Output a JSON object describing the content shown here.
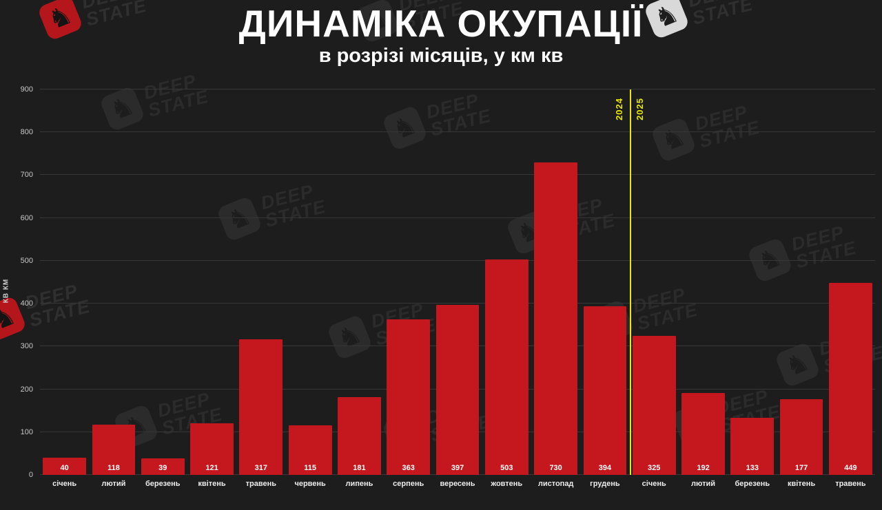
{
  "watermark": {
    "line1": "DEEP",
    "line2": "STATE",
    "logo": "knight-chess-piece"
  },
  "colors": {
    "background": "#1d1d1d",
    "bar": "#c5171e",
    "separator": "#e8e800",
    "grid": "#373737",
    "accent_red": "#b5161c"
  },
  "chart_data": {
    "type": "bar",
    "title": "ДИНАМІКА ОКУПАЦІЇ",
    "subtitle": "в розрізі місяців, у км кв",
    "ylabel": "КВ КМ",
    "ylim": [
      0,
      900
    ],
    "yticks": [
      0,
      100,
      200,
      300,
      400,
      500,
      600,
      700,
      800,
      900
    ],
    "grid": "horizontal",
    "categories": [
      "січень",
      "лютий",
      "березень",
      "квітень",
      "травень",
      "червень",
      "липень",
      "серпень",
      "вересень",
      "жовтень",
      "листопад",
      "грудень",
      "січень",
      "лютий",
      "березень",
      "квітень",
      "травень"
    ],
    "values": [
      40,
      118,
      39,
      121,
      317,
      115,
      181,
      363,
      397,
      503,
      730,
      394,
      325,
      192,
      133,
      177,
      449
    ],
    "value_labels_shown": true,
    "bar_color": "#c5171e",
    "separator": {
      "after_index": 11,
      "left_label": "2024",
      "right_label": "2025",
      "color": "#e8e800"
    }
  }
}
